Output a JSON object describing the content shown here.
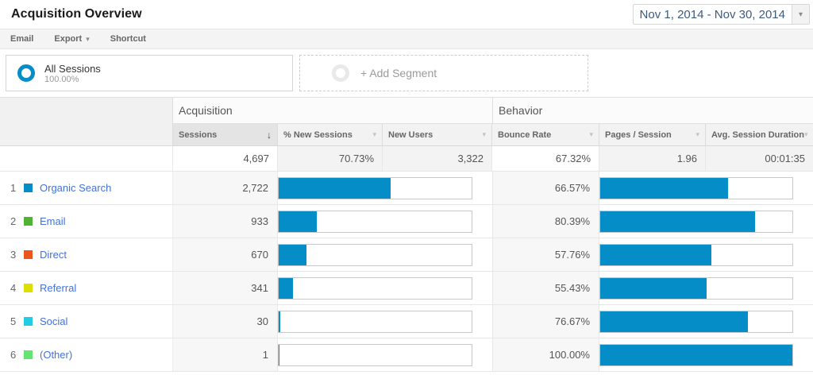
{
  "header": {
    "title": "Acquisition Overview",
    "date_range": "Nov 1, 2014 - Nov 30, 2014"
  },
  "toolbar": {
    "email_label": "Email",
    "export_label": "Export",
    "shortcut_label": "Shortcut"
  },
  "segments": {
    "all_sessions_label": "All Sessions",
    "all_sessions_percent": "100.00%",
    "add_segment_label": "+ Add Segment"
  },
  "icons": {
    "sort_descending": "↓",
    "caret_down": "▾",
    "column_sort": "▾"
  },
  "colors": {
    "bar_fill": "#058dc7",
    "link_blue": "#4272db"
  },
  "table": {
    "groups": {
      "acquisition": "Acquisition",
      "behavior": "Behavior"
    },
    "columns": [
      "Sessions",
      "% New Sessions",
      "New Users",
      "Bounce Rate",
      "Pages / Session",
      "Avg. Session Duration"
    ],
    "totals": {
      "sessions": "4,697",
      "pct_new_sessions": "70.73%",
      "new_users": "3,322",
      "bounce_rate": "67.32%",
      "pages_per_session": "1.96",
      "avg_session_duration": "00:01:35"
    },
    "totals_numeric": {
      "sessions": 4697,
      "pct_new_sessions": 70.73,
      "new_users": 3322,
      "bounce_rate": 67.32,
      "pages_per_session": 1.96
    },
    "rows": [
      {
        "rank": "1",
        "channel": "Organic Search",
        "swatch_color": "#058DC7",
        "sessions": "2,722",
        "sessions_numeric": 2722,
        "sessions_bar_pct": 57.95,
        "bounce_rate": "66.57%",
        "bounce_bar_pct": 66.57
      },
      {
        "rank": "2",
        "channel": "Email",
        "swatch_color": "#50B432",
        "sessions": "933",
        "sessions_numeric": 933,
        "sessions_bar_pct": 19.86,
        "bounce_rate": "80.39%",
        "bounce_bar_pct": 80.39
      },
      {
        "rank": "3",
        "channel": "Direct",
        "swatch_color": "#ED561B",
        "sessions": "670",
        "sessions_numeric": 670,
        "sessions_bar_pct": 14.26,
        "bounce_rate": "57.76%",
        "bounce_bar_pct": 57.76
      },
      {
        "rank": "4",
        "channel": "Referral",
        "swatch_color": "#DDDF00",
        "sessions": "341",
        "sessions_numeric": 341,
        "sessions_bar_pct": 7.26,
        "bounce_rate": "55.43%",
        "bounce_bar_pct": 55.43
      },
      {
        "rank": "5",
        "channel": "Social",
        "swatch_color": "#24CBE5",
        "sessions": "30",
        "sessions_numeric": 30,
        "sessions_bar_pct": 0.64,
        "bounce_rate": "76.67%",
        "bounce_bar_pct": 76.67
      },
      {
        "rank": "6",
        "channel": "(Other)",
        "swatch_color": "#64E572",
        "sessions": "1",
        "sessions_numeric": 1,
        "sessions_bar_pct": 0.02,
        "bounce_rate": "100.00%",
        "bounce_bar_pct": 100.0
      }
    ]
  }
}
